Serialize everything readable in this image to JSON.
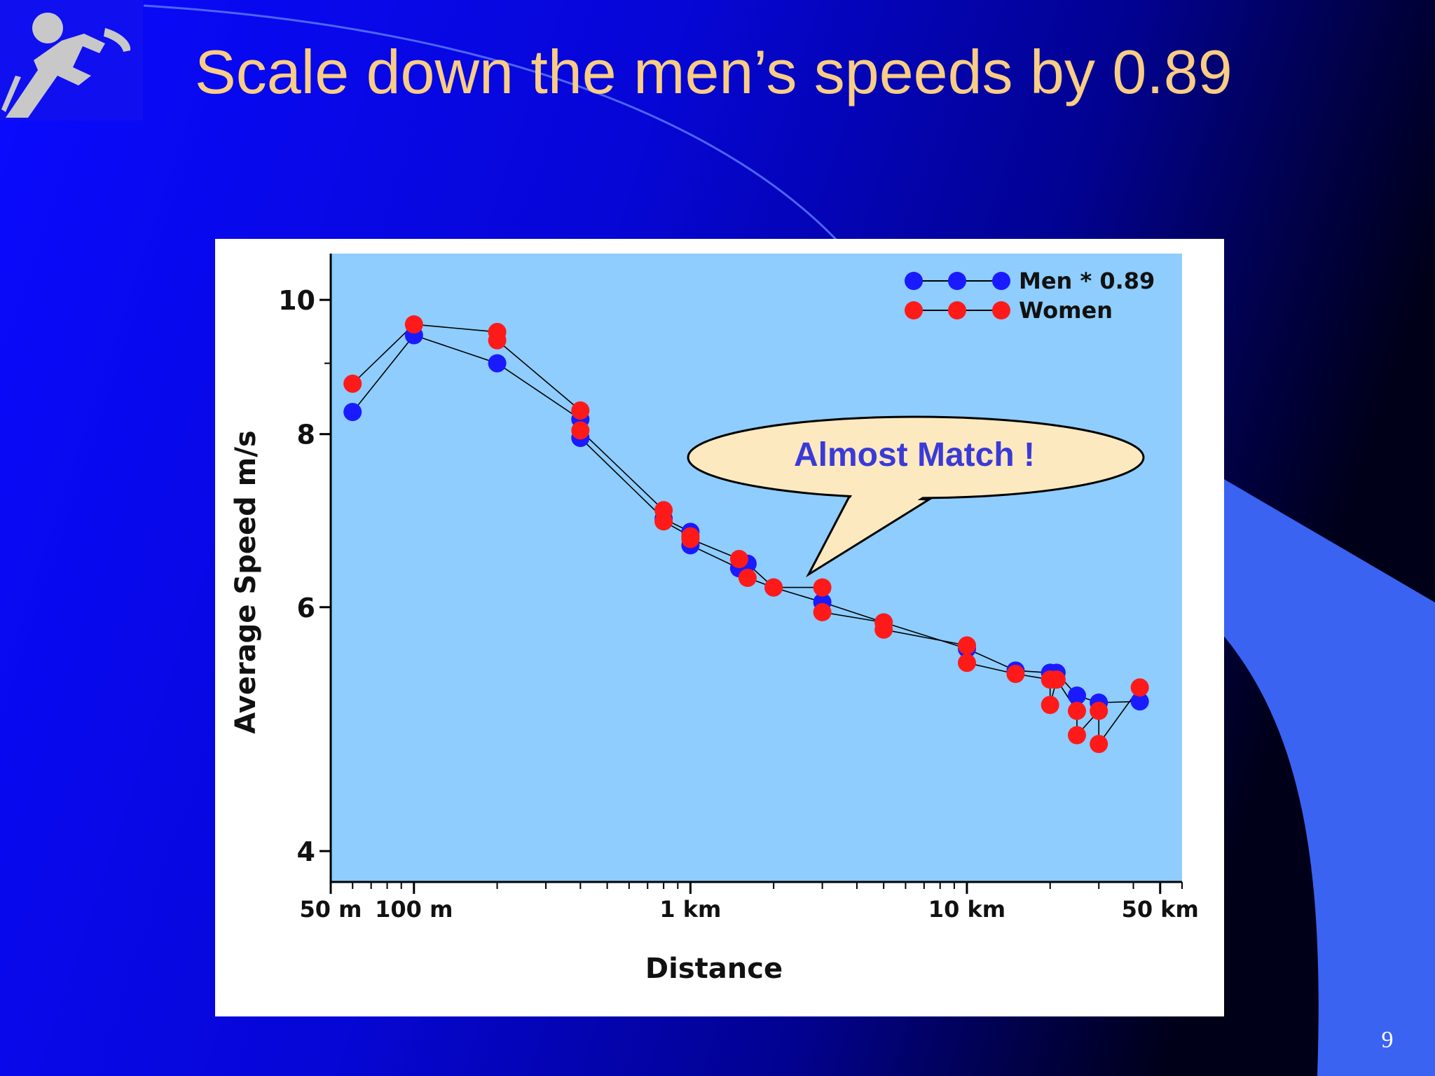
{
  "slide": {
    "title": "Scale down the men’s speeds by 0.89",
    "page_number": "9",
    "logo_icon": "runner-icon",
    "callout": "Almost Match !"
  },
  "colors": {
    "title": "#f9cd84",
    "men": "#1a1aff",
    "women": "#ff1a1a",
    "plot_bg": "#8ecdfd",
    "callout_fill": "#fde9c0",
    "callout_text": "#3a3ad8"
  },
  "chart_data": {
    "type": "line",
    "title": "",
    "xlabel": "Distance",
    "ylabel": "Average Speed  m/s",
    "x_scale": "log",
    "y_scale": "log",
    "xlim": [
      50,
      60000
    ],
    "ylim": [
      3.8,
      10.8
    ],
    "x_ticks": [
      {
        "value": 50,
        "label": "50 m"
      },
      {
        "value": 100,
        "label": "100 m"
      },
      {
        "value": 1000,
        "label": "1 km"
      },
      {
        "value": 10000,
        "label": "10 km"
      },
      {
        "value": 50000,
        "label": "50 km"
      }
    ],
    "y_ticks": [
      {
        "value": 4,
        "label": "4"
      },
      {
        "value": 6,
        "label": "6"
      },
      {
        "value": 8,
        "label": "8"
      },
      {
        "value": 10,
        "label": "10"
      }
    ],
    "y_minor_ticks": [
      9
    ],
    "grid": false,
    "legend": "top-right",
    "series": [
      {
        "name": "Men * 0.89",
        "points": [
          [
            60,
            8.3
          ],
          [
            100,
            9.43
          ],
          [
            200,
            9.0
          ],
          [
            400,
            8.2
          ],
          [
            400,
            7.95
          ],
          [
            800,
            6.95
          ],
          [
            1000,
            6.8
          ],
          [
            1000,
            6.65
          ],
          [
            1500,
            6.4
          ],
          [
            1609,
            6.45
          ],
          [
            2000,
            6.2
          ],
          [
            3000,
            6.05
          ],
          [
            5000,
            5.85
          ],
          [
            10000,
            5.6
          ],
          [
            15000,
            5.4
          ],
          [
            20000,
            5.38
          ],
          [
            21097,
            5.38
          ],
          [
            25000,
            5.18
          ],
          [
            30000,
            5.12
          ],
          [
            42195,
            5.13
          ]
        ]
      },
      {
        "name": "Women",
        "points": [
          [
            60,
            8.7
          ],
          [
            100,
            9.6
          ],
          [
            200,
            9.48
          ],
          [
            200,
            9.35
          ],
          [
            400,
            8.32
          ],
          [
            400,
            8.05
          ],
          [
            800,
            7.05
          ],
          [
            800,
            6.92
          ],
          [
            1000,
            6.75
          ],
          [
            1000,
            6.72
          ],
          [
            1500,
            6.5
          ],
          [
            1609,
            6.3
          ],
          [
            2000,
            6.2
          ],
          [
            3000,
            6.2
          ],
          [
            3000,
            5.95
          ],
          [
            5000,
            5.85
          ],
          [
            5000,
            5.78
          ],
          [
            10000,
            5.63
          ],
          [
            10000,
            5.47
          ],
          [
            15000,
            5.37
          ],
          [
            20000,
            5.32
          ],
          [
            20000,
            5.1
          ],
          [
            21097,
            5.32
          ],
          [
            25000,
            5.05
          ],
          [
            25000,
            4.85
          ],
          [
            30000,
            5.05
          ],
          [
            30000,
            4.78
          ],
          [
            42195,
            5.25
          ]
        ]
      }
    ]
  }
}
